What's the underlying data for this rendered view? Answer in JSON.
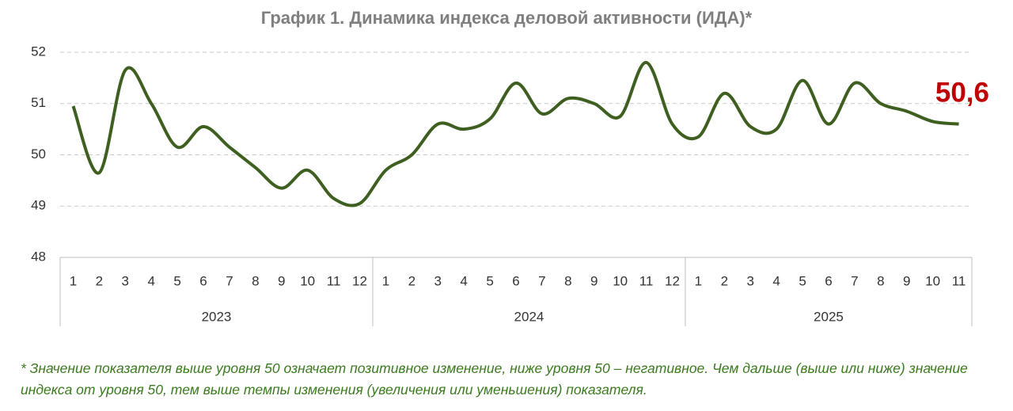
{
  "chart_data": {
    "type": "line",
    "title": "График 1. Динамика индекса деловой активности (ИДА)*",
    "groups": [
      {
        "label": "2023",
        "categories": [
          "1",
          "2",
          "3",
          "4",
          "5",
          "6",
          "7",
          "8",
          "9",
          "10",
          "11",
          "12"
        ]
      },
      {
        "label": "2024",
        "categories": [
          "1",
          "2",
          "3",
          "4",
          "5",
          "6",
          "7",
          "8",
          "9",
          "10",
          "11",
          "12"
        ]
      },
      {
        "label": "2025",
        "categories": [
          "1",
          "2",
          "3",
          "4",
          "5",
          "6",
          "7",
          "8",
          "9",
          "10",
          "11"
        ]
      }
    ],
    "series": [
      {
        "color": "#3e5f20",
        "values": [
          50.95,
          49.65,
          51.65,
          51.0,
          50.15,
          50.55,
          50.15,
          49.75,
          49.35,
          49.7,
          49.15,
          49.05,
          49.7,
          50.0,
          50.6,
          50.5,
          50.7,
          51.4,
          50.8,
          51.1,
          51.0,
          50.75,
          51.8,
          50.6,
          50.35,
          51.2,
          50.55,
          50.5,
          51.45,
          50.6,
          51.4,
          51.0,
          50.85,
          50.65,
          50.6
        ]
      }
    ],
    "annotation": {
      "text": "50,6",
      "color": "#c00000"
    },
    "ylim": [
      48,
      52
    ],
    "yticks": [
      48,
      49,
      50,
      51,
      52
    ],
    "grid": true,
    "footnote": "* Значение показателя выше уровня 50 означает позитивное изменение, ниже уровня 50 – негативное. Чем дальше (выше или ниже) значение индекса от уровня 50, тем выше темпы изменения (увеличения или уменьшения) показателя."
  }
}
